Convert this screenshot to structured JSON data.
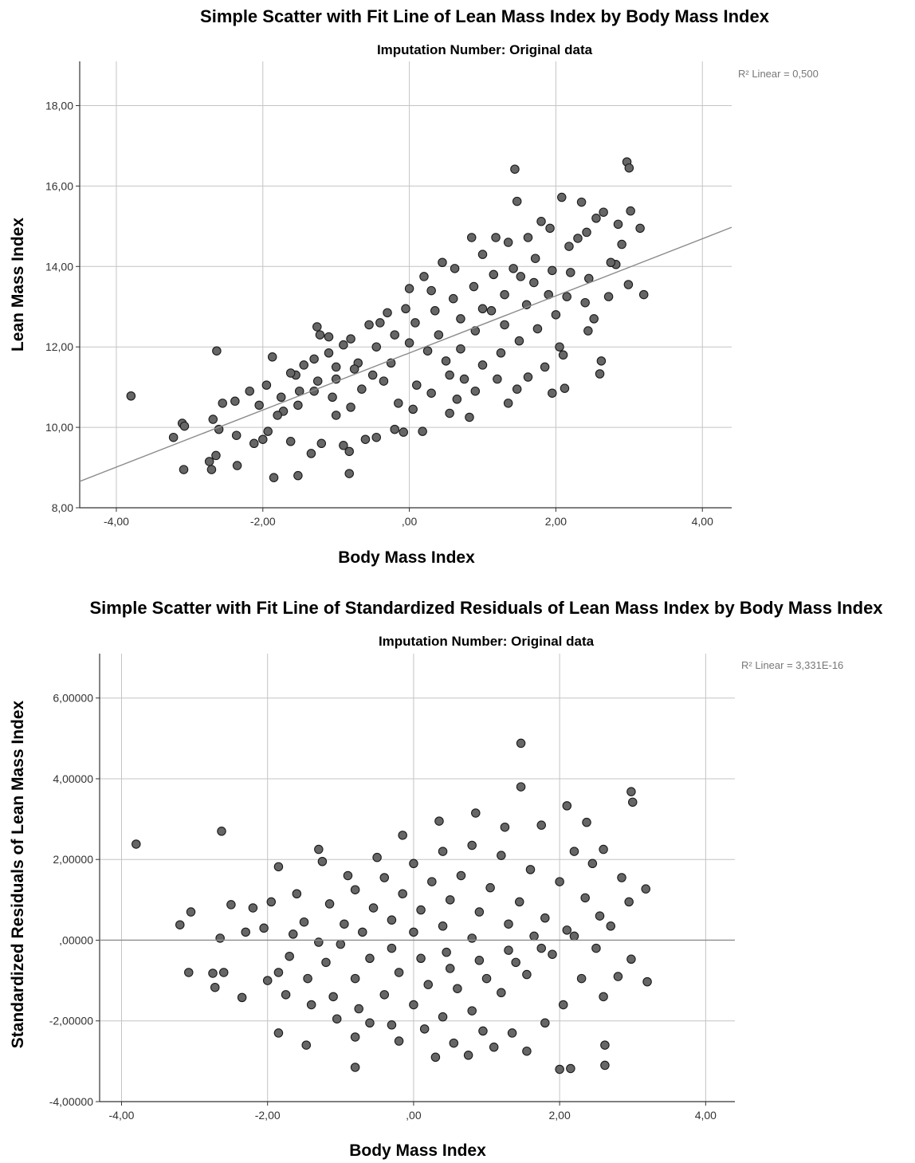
{
  "chart_data": [
    {
      "type": "scatter",
      "title": "Simple Scatter with Fit Line of Lean Mass Index by Body Mass Index",
      "subtitle": "Imputation Number: Original data",
      "xlabel": "Body Mass Index",
      "ylabel": "Lean Mass Index",
      "xlim": [
        -4.5,
        4.4
      ],
      "ylim": [
        8,
        19.1
      ],
      "xticks": [
        -4,
        -2,
        0,
        2,
        4
      ],
      "xtick_labels": [
        "-4,00",
        "-2,00",
        ",00",
        "2,00",
        "4,00"
      ],
      "yticks": [
        8,
        10,
        12,
        14,
        16,
        18
      ],
      "ytick_labels": [
        "8,00",
        "10,00",
        "12,00",
        "14,00",
        "16,00",
        "18,00"
      ],
      "grid": true,
      "point_color": "#666666",
      "point_edge": "#1a1a1a",
      "fit_line": {
        "label": "R² Linear = 0,500",
        "intercept": 11.85,
        "slope": 0.71,
        "color": "#8c8c8c"
      },
      "points": [
        [
          -3.8,
          10.78
        ],
        [
          -2.63,
          11.9
        ],
        [
          -3.1,
          10.1
        ],
        [
          -3.07,
          10.03
        ],
        [
          -3.22,
          9.75
        ],
        [
          -3.08,
          8.95
        ],
        [
          -2.73,
          9.15
        ],
        [
          -2.7,
          8.95
        ],
        [
          -2.64,
          9.3
        ],
        [
          -2.68,
          10.2
        ],
        [
          -2.6,
          9.95
        ],
        [
          -2.55,
          10.6
        ],
        [
          -2.35,
          9.05
        ],
        [
          -2.36,
          9.8
        ],
        [
          -2.38,
          10.65
        ],
        [
          -2.18,
          10.9
        ],
        [
          -2.12,
          9.6
        ],
        [
          -2.0,
          9.7
        ],
        [
          -1.93,
          9.9
        ],
        [
          -1.87,
          11.75
        ],
        [
          -1.85,
          8.75
        ],
        [
          -1.52,
          8.8
        ],
        [
          -0.82,
          8.85
        ],
        [
          -1.26,
          12.5
        ],
        [
          -1.22,
          12.3
        ],
        [
          -1.0,
          10.3
        ],
        [
          -0.82,
          9.4
        ],
        [
          1.44,
          16.42
        ],
        [
          1.47,
          15.62
        ],
        [
          2.08,
          15.72
        ],
        [
          2.35,
          15.6
        ],
        [
          2.97,
          16.6
        ],
        [
          3.0,
          16.45
        ],
        [
          3.02,
          15.38
        ],
        [
          3.15,
          14.95
        ],
        [
          2.99,
          13.55
        ],
        [
          3.2,
          13.3
        ],
        [
          2.62,
          11.65
        ],
        [
          2.6,
          11.33
        ],
        [
          1.47,
          10.95
        ],
        [
          1.95,
          10.85
        ],
        [
          2.12,
          10.97
        ],
        [
          2.1,
          11.8
        ],
        [
          2.85,
          15.05
        ],
        [
          2.9,
          14.55
        ],
        [
          2.82,
          14.05
        ],
        [
          2.72,
          13.25
        ],
        [
          2.52,
          12.7
        ],
        [
          2.44,
          12.4
        ],
        [
          2.05,
          12.0
        ],
        [
          1.85,
          11.5
        ],
        [
          1.62,
          11.25
        ],
        [
          1.35,
          10.6
        ],
        [
          0.82,
          10.25
        ],
        [
          0.65,
          10.7
        ],
        [
          0.18,
          9.9
        ],
        [
          -0.08,
          9.88
        ],
        [
          -0.2,
          9.95
        ],
        [
          -0.45,
          9.75
        ],
        [
          -0.6,
          9.7
        ],
        [
          -0.9,
          9.55
        ],
        [
          -1.2,
          9.6
        ],
        [
          -1.34,
          9.35
        ],
        [
          -1.62,
          9.65
        ],
        [
          -1.72,
          10.4
        ],
        [
          -1.55,
          11.3
        ],
        [
          -1.44,
          11.55
        ],
        [
          -1.1,
          11.85
        ],
        [
          -0.9,
          12.05
        ],
        [
          -0.55,
          12.55
        ],
        [
          -0.3,
          12.85
        ],
        [
          0.0,
          13.45
        ],
        [
          0.2,
          13.75
        ],
        [
          0.45,
          14.1
        ],
        [
          0.62,
          13.95
        ],
        [
          0.85,
          14.72
        ],
        [
          1.0,
          14.3
        ],
        [
          1.18,
          14.72
        ],
        [
          1.35,
          14.6
        ],
        [
          1.62,
          14.72
        ],
        [
          1.8,
          15.12
        ],
        [
          1.92,
          14.95
        ],
        [
          2.18,
          14.5
        ],
        [
          2.42,
          14.85
        ],
        [
          2.65,
          15.35
        ],
        [
          2.55,
          15.2
        ],
        [
          2.3,
          14.7
        ],
        [
          1.72,
          14.2
        ],
        [
          1.52,
          13.75
        ],
        [
          1.3,
          13.3
        ],
        [
          1.12,
          12.9
        ],
        [
          0.9,
          12.4
        ],
        [
          0.7,
          11.95
        ],
        [
          0.55,
          11.3
        ],
        [
          0.3,
          10.85
        ],
        [
          0.05,
          10.45
        ],
        [
          -0.15,
          10.6
        ],
        [
          -0.35,
          11.15
        ],
        [
          -0.65,
          10.95
        ],
        [
          -0.8,
          10.5
        ],
        [
          -1.05,
          10.75
        ],
        [
          -1.3,
          10.9
        ],
        [
          -1.52,
          10.55
        ],
        [
          -1.8,
          10.3
        ],
        [
          -2.05,
          10.55
        ],
        [
          -1.95,
          11.05
        ],
        [
          -1.62,
          11.35
        ],
        [
          -1.3,
          11.7
        ],
        [
          -1.0,
          11.2
        ],
        [
          -0.7,
          11.6
        ],
        [
          -0.45,
          12.0
        ],
        [
          -0.2,
          12.3
        ],
        [
          0.08,
          12.6
        ],
        [
          0.35,
          12.9
        ],
        [
          0.6,
          13.2
        ],
        [
          0.88,
          13.5
        ],
        [
          1.15,
          13.8
        ],
        [
          1.42,
          13.95
        ],
        [
          1.7,
          13.6
        ],
        [
          1.95,
          13.9
        ],
        [
          2.2,
          13.85
        ],
        [
          2.45,
          13.7
        ],
        [
          2.75,
          14.1
        ],
        [
          2.0,
          12.8
        ],
        [
          1.75,
          12.45
        ],
        [
          1.5,
          12.15
        ],
        [
          1.25,
          11.85
        ],
        [
          1.0,
          11.55
        ],
        [
          0.75,
          11.2
        ],
        [
          0.5,
          11.65
        ],
        [
          0.25,
          11.9
        ],
        [
          0.0,
          12.1
        ],
        [
          -0.25,
          11.6
        ],
        [
          -0.5,
          11.3
        ],
        [
          -0.75,
          11.45
        ],
        [
          -1.0,
          11.5
        ],
        [
          -1.25,
          11.15
        ],
        [
          -1.5,
          10.9
        ],
        [
          -1.75,
          10.75
        ],
        [
          0.1,
          11.05
        ],
        [
          0.4,
          12.3
        ],
        [
          0.7,
          12.7
        ],
        [
          1.0,
          12.95
        ],
        [
          1.3,
          12.55
        ],
        [
          1.6,
          13.05
        ],
        [
          1.9,
          13.3
        ],
        [
          2.15,
          13.25
        ],
        [
          2.4,
          13.1
        ],
        [
          0.3,
          13.4
        ],
        [
          -0.05,
          12.95
        ],
        [
          -0.4,
          12.6
        ],
        [
          -0.8,
          12.2
        ],
        [
          -1.1,
          12.25
        ],
        [
          0.55,
          10.35
        ],
        [
          0.9,
          10.9
        ],
        [
          1.2,
          11.2
        ]
      ]
    },
    {
      "type": "scatter",
      "title": "Simple Scatter with Fit Line of Standardized Residuals of Lean Mass Index by Body Mass Index",
      "subtitle": "Imputation Number: Original data",
      "xlabel": "Body Mass Index",
      "ylabel": "Standardized Residuals of Lean Mass Index",
      "xlim": [
        -4.3,
        4.4
      ],
      "ylim": [
        -4,
        7.1
      ],
      "xticks": [
        -4,
        -2,
        0,
        2,
        4
      ],
      "xtick_labels": [
        "-4,00",
        "-2,00",
        ",00",
        "2,00",
        "4,00"
      ],
      "yticks": [
        -4,
        -2,
        0,
        2,
        4,
        6
      ],
      "ytick_labels": [
        "-4,00000",
        "-2,00000",
        ",00000",
        "2,00000",
        "4,00000",
        "6,00000"
      ],
      "grid": true,
      "point_color": "#666666",
      "point_edge": "#1a1a1a",
      "fit_line": {
        "label": "R² Linear = 3,331E-16",
        "intercept": 0,
        "slope": 0,
        "color": "#8c8c8c"
      },
      "points": [
        [
          -3.8,
          2.38
        ],
        [
          -2.63,
          2.7
        ],
        [
          -3.05,
          0.7
        ],
        [
          -3.2,
          0.38
        ],
        [
          -3.08,
          -0.8
        ],
        [
          -2.75,
          -0.82
        ],
        [
          -2.72,
          -1.17
        ],
        [
          -2.65,
          0.05
        ],
        [
          -2.6,
          -0.8
        ],
        [
          -2.5,
          0.88
        ],
        [
          -2.35,
          -1.42
        ],
        [
          -2.2,
          0.8
        ],
        [
          -1.85,
          1.82
        ],
        [
          -1.85,
          -2.3
        ],
        [
          -1.47,
          -2.6
        ],
        [
          -1.3,
          2.25
        ],
        [
          -0.8,
          -3.15
        ],
        [
          -0.8,
          -2.4
        ],
        [
          1.47,
          4.88
        ],
        [
          1.47,
          3.8
        ],
        [
          2.1,
          3.33
        ],
        [
          2.37,
          2.92
        ],
        [
          2.98,
          3.68
        ],
        [
          3.0,
          3.42
        ],
        [
          3.18,
          1.27
        ],
        [
          3.2,
          -1.03
        ],
        [
          2.98,
          -0.47
        ],
        [
          2.62,
          -2.6
        ],
        [
          2.62,
          -3.1
        ],
        [
          2.0,
          -3.2
        ],
        [
          2.15,
          -3.18
        ],
        [
          1.55,
          -2.75
        ],
        [
          1.1,
          -2.65
        ],
        [
          0.75,
          -2.85
        ],
        [
          0.3,
          -2.9
        ],
        [
          -0.2,
          -2.5
        ],
        [
          -0.6,
          -2.05
        ],
        [
          -1.05,
          -1.95
        ],
        [
          -1.4,
          -1.6
        ],
        [
          -1.75,
          -1.35
        ],
        [
          -2.0,
          -1.0
        ],
        [
          -2.3,
          0.2
        ],
        [
          -1.95,
          0.95
        ],
        [
          -1.6,
          1.15
        ],
        [
          -1.25,
          1.95
        ],
        [
          -0.9,
          1.6
        ],
        [
          -0.5,
          2.05
        ],
        [
          -0.15,
          2.6
        ],
        [
          0.35,
          2.95
        ],
        [
          0.85,
          3.15
        ],
        [
          1.25,
          2.8
        ],
        [
          1.75,
          2.85
        ],
        [
          2.2,
          2.2
        ],
        [
          2.6,
          2.25
        ],
        [
          2.85,
          1.55
        ],
        [
          2.95,
          0.95
        ],
        [
          2.7,
          0.35
        ],
        [
          2.5,
          -0.2
        ],
        [
          2.3,
          -0.95
        ],
        [
          2.05,
          -1.6
        ],
        [
          1.8,
          -2.05
        ],
        [
          1.35,
          -2.3
        ],
        [
          0.95,
          -2.25
        ],
        [
          0.55,
          -2.55
        ],
        [
          0.15,
          -2.2
        ],
        [
          -0.3,
          -2.1
        ],
        [
          -0.75,
          -1.7
        ],
        [
          -1.1,
          -1.4
        ],
        [
          -1.45,
          -0.95
        ],
        [
          -1.7,
          -0.4
        ],
        [
          -1.5,
          0.45
        ],
        [
          -1.15,
          0.9
        ],
        [
          -0.8,
          1.25
        ],
        [
          -0.4,
          1.55
        ],
        [
          0.0,
          1.9
        ],
        [
          0.4,
          2.2
        ],
        [
          0.8,
          2.35
        ],
        [
          1.2,
          2.1
        ],
        [
          1.6,
          1.75
        ],
        [
          2.0,
          1.45
        ],
        [
          2.35,
          1.05
        ],
        [
          2.55,
          0.6
        ],
        [
          2.2,
          0.1
        ],
        [
          1.9,
          -0.35
        ],
        [
          1.55,
          -0.85
        ],
        [
          1.2,
          -1.3
        ],
        [
          0.8,
          -1.75
        ],
        [
          0.4,
          -1.9
        ],
        [
          0.0,
          -1.6
        ],
        [
          -0.4,
          -1.35
        ],
        [
          -0.8,
          -0.95
        ],
        [
          -1.2,
          -0.55
        ],
        [
          -1.3,
          -0.05
        ],
        [
          -0.95,
          0.4
        ],
        [
          -0.55,
          0.8
        ],
        [
          -0.15,
          1.15
        ],
        [
          0.25,
          1.45
        ],
        [
          0.65,
          1.6
        ],
        [
          1.05,
          1.3
        ],
        [
          1.45,
          0.95
        ],
        [
          1.8,
          0.55
        ],
        [
          2.1,
          0.25
        ],
        [
          1.75,
          -0.2
        ],
        [
          1.4,
          -0.55
        ],
        [
          1.0,
          -0.95
        ],
        [
          0.6,
          -1.2
        ],
        [
          0.2,
          -1.1
        ],
        [
          -0.2,
          -0.8
        ],
        [
          -0.6,
          -0.45
        ],
        [
          -1.0,
          -0.1
        ],
        [
          -0.7,
          0.2
        ],
        [
          -0.3,
          0.5
        ],
        [
          0.1,
          0.75
        ],
        [
          0.5,
          1.0
        ],
        [
          0.9,
          0.7
        ],
        [
          1.3,
          0.4
        ],
        [
          1.65,
          0.1
        ],
        [
          1.3,
          -0.25
        ],
        [
          0.9,
          -0.5
        ],
        [
          0.5,
          -0.7
        ],
        [
          0.1,
          -0.45
        ],
        [
          -0.3,
          -0.2
        ],
        [
          0.0,
          0.2
        ],
        [
          0.4,
          0.35
        ],
        [
          0.8,
          0.05
        ],
        [
          0.45,
          -0.3
        ],
        [
          -1.85,
          -0.8
        ],
        [
          -1.65,
          0.15
        ],
        [
          -2.05,
          0.3
        ],
        [
          2.6,
          -1.4
        ],
        [
          2.8,
          -0.9
        ],
        [
          2.45,
          1.9
        ]
      ]
    }
  ]
}
